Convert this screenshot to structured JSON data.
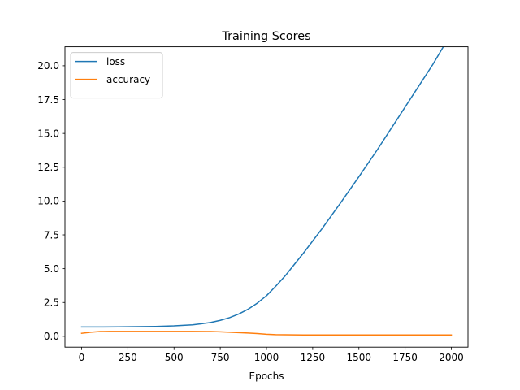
{
  "chart_data": {
    "type": "line",
    "title": "Training Scores",
    "xlabel": "Epochs",
    "ylabel": "",
    "xlim": [
      -90,
      2090
    ],
    "ylim": [
      -0.8,
      21.4
    ],
    "xticks": [
      0,
      250,
      500,
      750,
      1000,
      1250,
      1500,
      1750,
      2000
    ],
    "xtick_labels": [
      "0",
      "250",
      "500",
      "750",
      "1000",
      "1250",
      "1500",
      "1750",
      "2000"
    ],
    "yticks": [
      0.0,
      2.5,
      5.0,
      7.5,
      10.0,
      12.5,
      15.0,
      17.5,
      20.0
    ],
    "ytick_labels": [
      "0.0",
      "2.5",
      "5.0",
      "7.5",
      "10.0",
      "12.5",
      "15.0",
      "17.5",
      "20.0"
    ],
    "grid": false,
    "legend_position": "top-left",
    "series": [
      {
        "name": "loss",
        "color": "#1f77b4",
        "x": [
          0,
          100,
          200,
          300,
          400,
          500,
          600,
          650,
          700,
          750,
          800,
          850,
          900,
          950,
          1000,
          1050,
          1100,
          1150,
          1200,
          1250,
          1300,
          1400,
          1500,
          1600,
          1700,
          1800,
          1900,
          2000
        ],
        "y": [
          0.69,
          0.69,
          0.7,
          0.71,
          0.73,
          0.77,
          0.85,
          0.93,
          1.03,
          1.18,
          1.38,
          1.65,
          2.0,
          2.45,
          3.0,
          3.7,
          4.45,
          5.3,
          6.15,
          7.05,
          7.95,
          9.85,
          11.8,
          13.8,
          15.9,
          18.0,
          20.1,
          22.4
        ]
      },
      {
        "name": "accuracy",
        "color": "#ff7f0e",
        "x": [
          0,
          50,
          100,
          150,
          200,
          300,
          400,
          500,
          600,
          700,
          750,
          800,
          850,
          900,
          950,
          1000,
          1050,
          1100,
          1200,
          1300,
          1500,
          1750,
          2000
        ],
        "y": [
          0.22,
          0.3,
          0.35,
          0.36,
          0.36,
          0.36,
          0.36,
          0.36,
          0.36,
          0.35,
          0.33,
          0.3,
          0.27,
          0.24,
          0.2,
          0.15,
          0.12,
          0.11,
          0.1,
          0.1,
          0.1,
          0.1,
          0.1
        ]
      }
    ]
  }
}
